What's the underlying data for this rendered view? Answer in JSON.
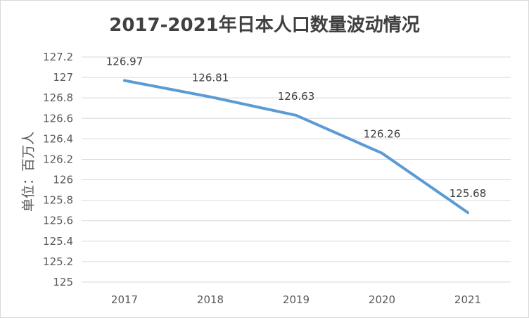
{
  "chart_data": {
    "type": "line",
    "title": "2017-2021年日本人口数量波动情况",
    "ylabel": "单位：百万人",
    "xlabel": "",
    "categories": [
      "2017",
      "2018",
      "2019",
      "2020",
      "2021"
    ],
    "series": [
      {
        "values": [
          126.97,
          126.81,
          126.63,
          126.26,
          125.68
        ],
        "color": "#5b9bd5"
      }
    ],
    "data_labels": [
      "126.97",
      "126.81",
      "126.63",
      "126.26",
      "125.68"
    ],
    "yticks": [
      "125",
      "125.2",
      "125.4",
      "125.6",
      "125.8",
      "126",
      "126.2",
      "126.4",
      "126.6",
      "126.8",
      "127",
      "127.2"
    ],
    "ylim": [
      125,
      127.2
    ],
    "grid": true,
    "legend": "none"
  }
}
